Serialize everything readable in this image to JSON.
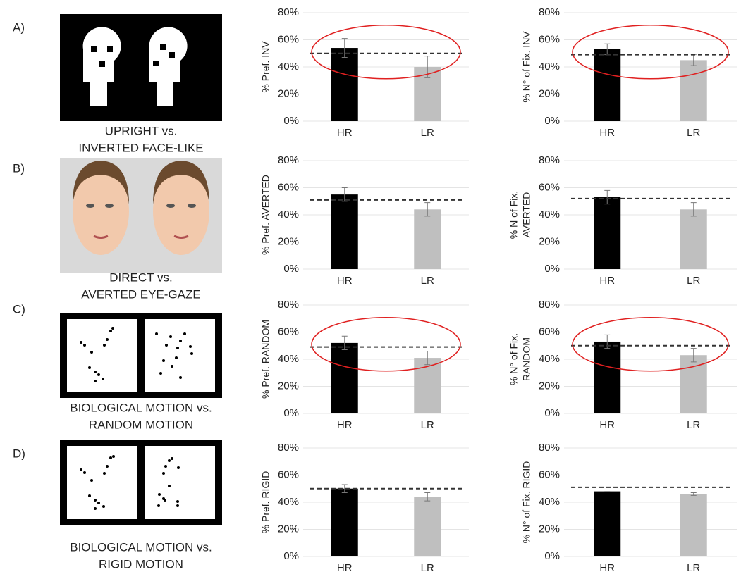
{
  "panels": [
    {
      "label": "A)",
      "caption": [
        "UPRIGHT vs.",
        "INVERTED FACE-LIKE"
      ]
    },
    {
      "label": "B)",
      "caption": [
        "DIRECT vs.",
        "AVERTED EYE-GAZE"
      ]
    },
    {
      "label": "C)",
      "caption": [
        "BIOLOGICAL MOTION vs.",
        "RANDOM MOTION"
      ]
    },
    {
      "label": "D)",
      "caption": [
        "BIOLOGICAL MOTION vs.",
        "RIGID MOTION"
      ]
    }
  ],
  "chart_data": [
    {
      "type": "bar",
      "ylabel": [
        "% Pref. INV"
      ],
      "categories": [
        "HR",
        "LR"
      ],
      "values": [
        54,
        40
      ],
      "errors": [
        7,
        8
      ],
      "colors": [
        "#000000",
        "#bfbfbf"
      ],
      "reference_line": 50,
      "highlight": true,
      "ylim": [
        0,
        80
      ],
      "yticks": [
        {
          "value": 0,
          "label": "0%"
        },
        {
          "value": 20,
          "label": "20%"
        },
        {
          "value": 40,
          "label": "40%"
        },
        {
          "value": 60,
          "label": "60%"
        },
        {
          "value": 80,
          "label": "80%"
        }
      ],
      "grid": true
    },
    {
      "type": "bar",
      "ylabel": [
        "% N° of Fix. INV"
      ],
      "categories": [
        "HR",
        "LR"
      ],
      "values": [
        53,
        45
      ],
      "errors": [
        4,
        4
      ],
      "colors": [
        "#000000",
        "#bfbfbf"
      ],
      "reference_line": 49,
      "highlight": true,
      "ylim": [
        0,
        80
      ],
      "yticks": [
        {
          "value": 0,
          "label": "0%"
        },
        {
          "value": 20,
          "label": "20%"
        },
        {
          "value": 40,
          "label": "40%"
        },
        {
          "value": 60,
          "label": "60%"
        },
        {
          "value": 80,
          "label": "80%"
        }
      ],
      "grid": true
    },
    {
      "type": "bar",
      "ylabel": [
        "% Pref. AVERTED"
      ],
      "categories": [
        "HR",
        "LR"
      ],
      "values": [
        55,
        44
      ],
      "errors": [
        5,
        5
      ],
      "colors": [
        "#000000",
        "#bfbfbf"
      ],
      "reference_line": 51,
      "highlight": false,
      "ylim": [
        0,
        80
      ],
      "yticks": [
        {
          "value": 0,
          "label": "0%"
        },
        {
          "value": 20,
          "label": "20%"
        },
        {
          "value": 40,
          "label": "40%"
        },
        {
          "value": 60,
          "label": "60%"
        },
        {
          "value": 80,
          "label": "80%"
        }
      ],
      "grid": true
    },
    {
      "type": "bar",
      "ylabel": [
        "% N of Fix.",
        "AVERTED"
      ],
      "categories": [
        "HR",
        "LR"
      ],
      "values": [
        53,
        44
      ],
      "errors": [
        5,
        5
      ],
      "colors": [
        "#000000",
        "#bfbfbf"
      ],
      "reference_line": 52,
      "highlight": false,
      "ylim": [
        0,
        80
      ],
      "yticks": [
        {
          "value": 0,
          "label": "0%"
        },
        {
          "value": 20,
          "label": "20%"
        },
        {
          "value": 40,
          "label": "40%"
        },
        {
          "value": 60,
          "label": "60%"
        },
        {
          "value": 80,
          "label": "80%"
        }
      ],
      "grid": true
    },
    {
      "type": "bar",
      "ylabel": [
        "% Pref. RANDOM"
      ],
      "categories": [
        "HR",
        "LR"
      ],
      "values": [
        52,
        41
      ],
      "errors": [
        5,
        5
      ],
      "colors": [
        "#000000",
        "#bfbfbf"
      ],
      "reference_line": 49,
      "highlight": true,
      "ylim": [
        0,
        80
      ],
      "yticks": [
        {
          "value": 0,
          "label": "0%"
        },
        {
          "value": 20,
          "label": "20%"
        },
        {
          "value": 40,
          "label": "40%"
        },
        {
          "value": 60,
          "label": "60%"
        },
        {
          "value": 80,
          "label": "80%"
        }
      ],
      "grid": true
    },
    {
      "type": "bar",
      "ylabel": [
        "% N° of Fix.",
        "RANDOM"
      ],
      "categories": [
        "HR",
        "LR"
      ],
      "values": [
        53,
        43
      ],
      "errors": [
        5,
        5
      ],
      "colors": [
        "#000000",
        "#bfbfbf"
      ],
      "reference_line": 50,
      "highlight": true,
      "ylim": [
        0,
        80
      ],
      "yticks": [
        {
          "value": 0,
          "label": "0%"
        },
        {
          "value": 20,
          "label": "20%"
        },
        {
          "value": 40,
          "label": "40%"
        },
        {
          "value": 60,
          "label": "60%"
        },
        {
          "value": 80,
          "label": "80%"
        }
      ],
      "grid": true
    },
    {
      "type": "bar",
      "ylabel": [
        "% Pref. RIGID"
      ],
      "categories": [
        "HR",
        "LR"
      ],
      "values": [
        50,
        44
      ],
      "errors": [
        3,
        3
      ],
      "colors": [
        "#000000",
        "#bfbfbf"
      ],
      "reference_line": 50,
      "highlight": false,
      "ylim": [
        0,
        80
      ],
      "yticks": [
        {
          "value": 0,
          "label": "0%"
        },
        {
          "value": 20,
          "label": "20%"
        },
        {
          "value": 40,
          "label": "40%"
        },
        {
          "value": 60,
          "label": "60%"
        },
        {
          "value": 80,
          "label": "80%"
        }
      ],
      "grid": true
    },
    {
      "type": "bar",
      "ylabel": [
        "% N° of Fix. RIGID"
      ],
      "categories": [
        "HR",
        "LR"
      ],
      "values": [
        48,
        46
      ],
      "errors": [
        0,
        1
      ],
      "colors": [
        "#000000",
        "#bfbfbf"
      ],
      "reference_line": 51,
      "highlight": false,
      "ylim": [
        0,
        80
      ],
      "yticks": [
        {
          "value": 0,
          "label": "0%"
        },
        {
          "value": 20,
          "label": "20%"
        },
        {
          "value": 40,
          "label": "40%"
        },
        {
          "value": 60,
          "label": "60%"
        },
        {
          "value": 80,
          "label": "80%"
        }
      ],
      "grid": true
    }
  ]
}
